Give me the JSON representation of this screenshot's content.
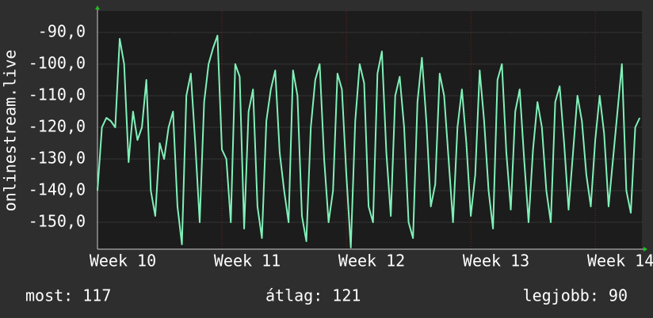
{
  "chart_data": {
    "type": "line",
    "y_label": "onlinestream.live",
    "categories": [
      "Week 10",
      null,
      null,
      null,
      null,
      null,
      null,
      null,
      null,
      null,
      null,
      null,
      null,
      null,
      null,
      null,
      null,
      null,
      null,
      null,
      null,
      null,
      null,
      null,
      null,
      null,
      null,
      null,
      "Week 11",
      null,
      null,
      null,
      null,
      null,
      null,
      null,
      null,
      null,
      null,
      null,
      null,
      null,
      null,
      null,
      null,
      null,
      null,
      null,
      null,
      null,
      null,
      null,
      null,
      null,
      null,
      null,
      "Week 12",
      null,
      null,
      null,
      null,
      null,
      null,
      null,
      null,
      null,
      null,
      null,
      null,
      null,
      null,
      null,
      null,
      null,
      null,
      null,
      null,
      null,
      null,
      null,
      null,
      null,
      null,
      null,
      "Week 13",
      null,
      null,
      null,
      null,
      null,
      null,
      null,
      null,
      null,
      null,
      null,
      null,
      null,
      null,
      null,
      null,
      null,
      null,
      null,
      null,
      null,
      null,
      null,
      null,
      null,
      null,
      null,
      "Week 14",
      null,
      null,
      null,
      null,
      null,
      null,
      null,
      null,
      null,
      null
    ],
    "series": [
      {
        "name": "onlinestream.live",
        "color": "#80f0b8",
        "values": [
          -140,
          -120,
          -117,
          -118,
          -120,
          -92,
          -100,
          -131,
          -115,
          -124,
          -120,
          -105,
          -140,
          -148,
          -125,
          -130,
          -120,
          -115,
          -145,
          -157,
          -110,
          -103,
          -125,
          -150,
          -112,
          -100,
          -95,
          -91,
          -127,
          -130,
          -150,
          -100,
          -104,
          -152,
          -115,
          -108,
          -145,
          -155,
          -118,
          -108,
          -102,
          -128,
          -140,
          -150,
          -102,
          -110,
          -148,
          -156,
          -120,
          -105,
          -100,
          -130,
          -150,
          -140,
          -103,
          -108,
          -135,
          -158,
          -118,
          -100,
          -106,
          -145,
          -150,
          -103,
          -96,
          -128,
          -148,
          -110,
          -104,
          -120,
          -150,
          -155,
          -112,
          -98,
          -118,
          -145,
          -138,
          -103,
          -110,
          -130,
          -150,
          -120,
          -108,
          -125,
          -148,
          -135,
          -102,
          -118,
          -140,
          -152,
          -105,
          -100,
          -128,
          -146,
          -115,
          -108,
          -130,
          -150,
          -127,
          -112,
          -120,
          -140,
          -150,
          -112,
          -107,
          -125,
          -146,
          -128,
          -110,
          -118,
          -135,
          -145,
          -124,
          -110,
          -122,
          -145,
          -130,
          -115,
          -100,
          -140,
          -147,
          -120,
          -117
        ]
      }
    ],
    "ylim": [
      -158.5,
      -83.25
    ],
    "yticks": [
      {
        "value": -150,
        "label": "-150,0"
      },
      {
        "value": -140,
        "label": "-140,0"
      },
      {
        "value": -130,
        "label": "-130,0"
      },
      {
        "value": -120,
        "label": "-120,0"
      },
      {
        "value": -110,
        "label": "-110,0"
      },
      {
        "value": -100,
        "label": "-100,0"
      },
      {
        "value": -90,
        "label": "-90,0"
      }
    ],
    "grid": true,
    "footer": [
      "most: 117",
      "átlag: 121",
      "legjobb: 90"
    ]
  }
}
